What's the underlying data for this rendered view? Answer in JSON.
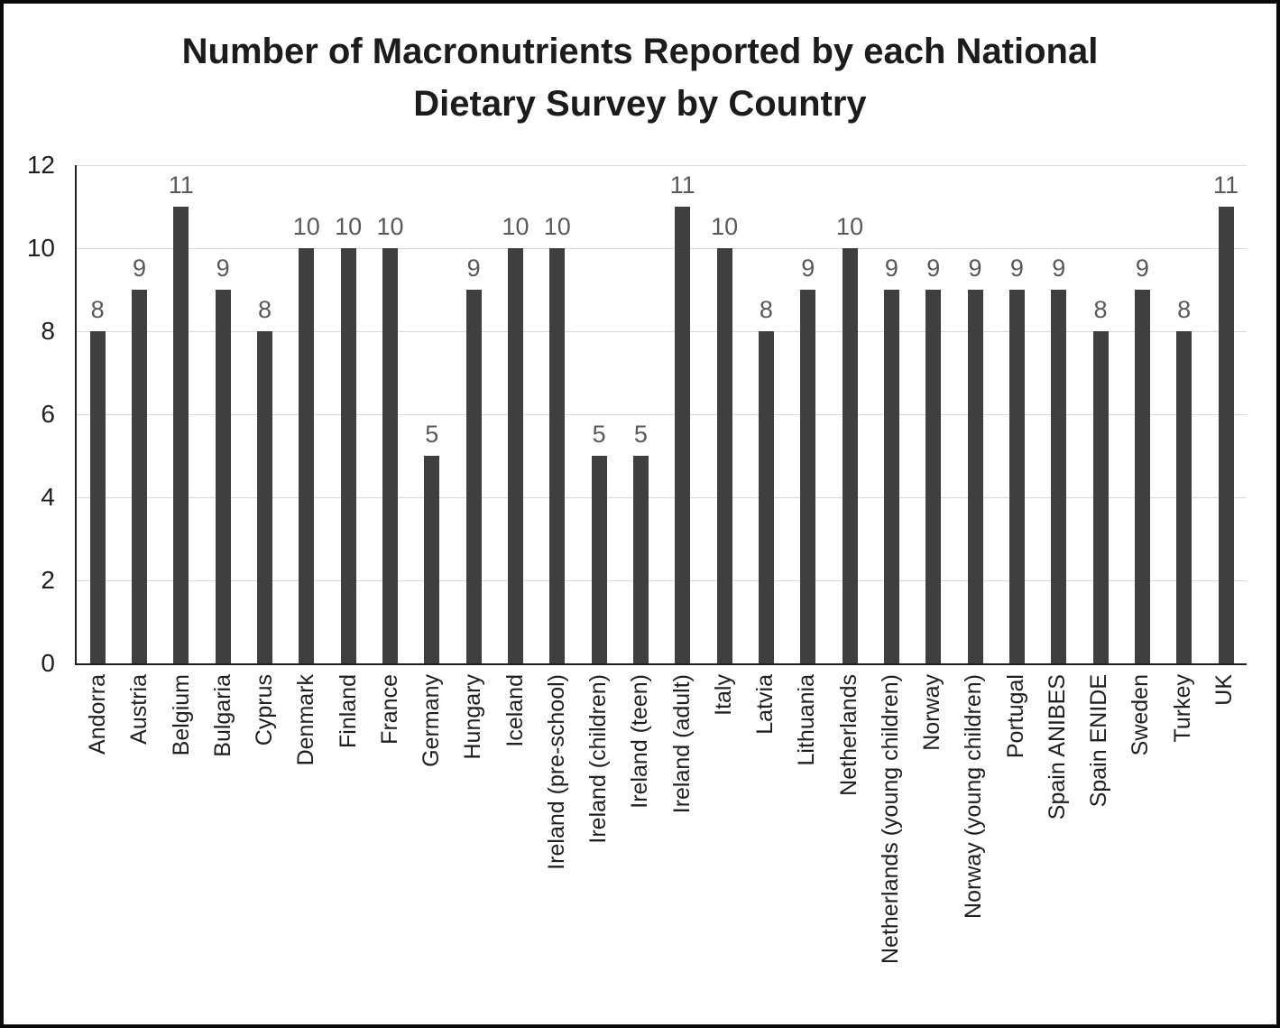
{
  "title": {
    "line1": "Number of Macronutrients Reported by each National",
    "line2": "Dietary Survey by Country"
  },
  "chart_data": {
    "type": "bar",
    "title": "Number of Macronutrients Reported by each National Dietary Survey by Country",
    "xlabel": "",
    "ylabel": "",
    "ylim": [
      0,
      12
    ],
    "yticks": [
      0,
      2,
      4,
      6,
      8,
      10,
      12
    ],
    "grid": "horizontal",
    "legend_position": "none",
    "data_labels": "above bars",
    "categories": [
      "Andorra",
      "Austria",
      "Belgium",
      "Bulgaria",
      "Cyprus",
      "Denmark",
      "Finland",
      "France",
      "Germany",
      "Hungary",
      "Iceland",
      "Ireland (pre-school)",
      "Ireland (children)",
      "Ireland (teen)",
      "Ireland (adult)",
      "Italy",
      "Latvia",
      "Lithuania",
      "Netherlands",
      "Netherlands (young children)",
      "Norway",
      "Norway (young children)",
      "Portugal",
      "Spain ANIBES",
      "Spain ENIDE",
      "Sweden",
      "Turkey",
      "UK"
    ],
    "values": [
      8,
      9,
      11,
      9,
      8,
      10,
      10,
      10,
      5,
      9,
      10,
      10,
      5,
      5,
      11,
      10,
      8,
      9,
      10,
      9,
      9,
      9,
      9,
      9,
      8,
      9,
      8,
      11
    ],
    "colors": {
      "bar": "#3F3F3F",
      "value_label": "#595959",
      "gridline": "#D9D9D9",
      "axis": "#1F1F1F",
      "tick_text": "#1F1F1F",
      "title_text": "#1C1C1C",
      "outer_border": "#0A0A0A",
      "background": "#FFFFFF"
    }
  }
}
